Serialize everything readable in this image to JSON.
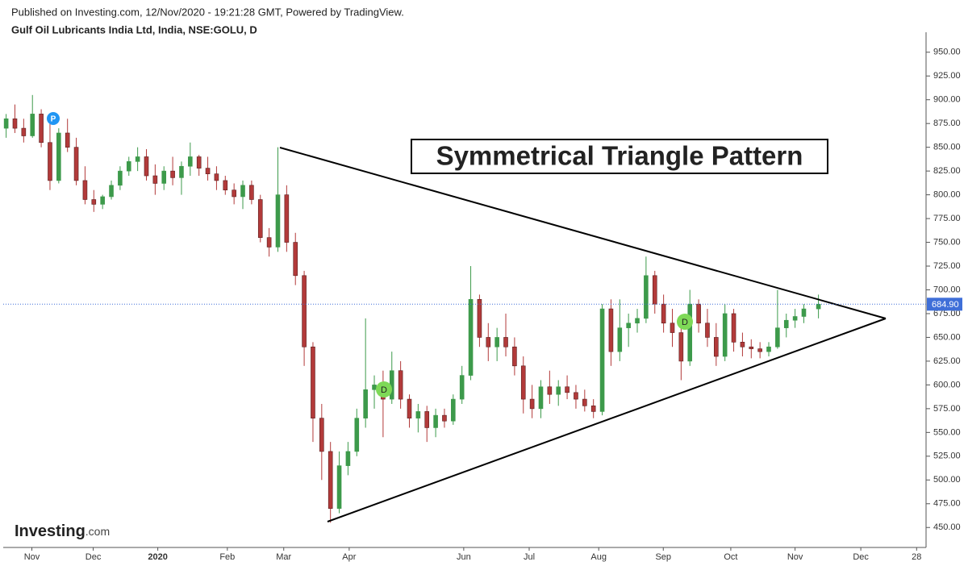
{
  "header": {
    "published": "Published on Investing.com, 12/Nov/2020 - 19:21:28 GMT, Powered by TradingView.",
    "symbol": "Gulf Oil Lubricants India Ltd, India, NSE:GOLU, D"
  },
  "chart_data": {
    "type": "candlestick",
    "annotation": "Symmetrical Triangle Pattern",
    "markers": [
      "P",
      "D",
      "D"
    ],
    "logo": {
      "brand": "Investing",
      "suffix": ".com"
    },
    "up_color": "#3d9a4b",
    "down_color": "#b23a3a",
    "last_price": {
      "value": 684.9,
      "label": "684.90"
    },
    "xlim": [
      -1,
      314
    ],
    "ylim": [
      429,
      971
    ],
    "xticks": [
      {
        "value": 8.8,
        "label": "Nov"
      },
      {
        "value": 29.8,
        "label": "Dec"
      },
      {
        "value": 51.9,
        "label": "2020"
      },
      {
        "value": 75.7,
        "label": "Feb"
      },
      {
        "value": 95,
        "label": "Mar"
      },
      {
        "value": 117.4,
        "label": "Apr"
      },
      {
        "value": 156.6,
        "label": "Jun"
      },
      {
        "value": 179,
        "label": "Jul"
      },
      {
        "value": 202.8,
        "label": "Aug"
      },
      {
        "value": 224.9,
        "label": "Sep"
      },
      {
        "value": 248,
        "label": "Oct"
      },
      {
        "value": 270,
        "label": "Nov"
      },
      {
        "value": 292.5,
        "label": "Dec"
      },
      {
        "value": 311.6,
        "label": "28"
      }
    ],
    "yticks": [
      {
        "value": 450,
        "label": "450.00"
      },
      {
        "value": 475,
        "label": "475.00"
      },
      {
        "value": 500,
        "label": "500.00"
      },
      {
        "value": 525,
        "label": "525.00"
      },
      {
        "value": 550,
        "label": "550.00"
      },
      {
        "value": 575,
        "label": "575.00"
      },
      {
        "value": 600,
        "label": "600.00"
      },
      {
        "value": 625,
        "label": "625.00"
      },
      {
        "value": 650,
        "label": "650.00"
      },
      {
        "value": 675,
        "label": "675.00"
      },
      {
        "value": 700,
        "label": "700.00"
      },
      {
        "value": 725,
        "label": "725.00"
      },
      {
        "value": 750,
        "label": "750.00"
      },
      {
        "value": 775,
        "label": "775.00"
      },
      {
        "value": 800,
        "label": "800.00"
      },
      {
        "value": 825,
        "label": "825.00"
      },
      {
        "value": 850,
        "label": "850.00"
      },
      {
        "value": 875,
        "label": "875.00"
      },
      {
        "value": 900,
        "label": "900.00"
      },
      {
        "value": 925,
        "label": "925.00"
      },
      {
        "value": 950,
        "label": "950.00"
      }
    ],
    "x": [
      0,
      3,
      6,
      9,
      12,
      15,
      18,
      21,
      24,
      27,
      30,
      33,
      36,
      39,
      42,
      45,
      48,
      51,
      54,
      57,
      60,
      63,
      66,
      69,
      72,
      75,
      78,
      81,
      84,
      87,
      90,
      93,
      96,
      99,
      102,
      105,
      108,
      111,
      114,
      117,
      120,
      123,
      126,
      129,
      132,
      135,
      138,
      141,
      144,
      147,
      150,
      153,
      156,
      159,
      162,
      165,
      168,
      171,
      174,
      177,
      180,
      183,
      186,
      189,
      192,
      195,
      198,
      201,
      204,
      207,
      210,
      213,
      216,
      219,
      222,
      225,
      228,
      231,
      234,
      237,
      240,
      243,
      246,
      249,
      252,
      255,
      258,
      261,
      264,
      267,
      270,
      273,
      278
    ],
    "ohlc": [
      [
        870,
        885,
        860,
        880
      ],
      [
        880,
        895,
        865,
        870
      ],
      [
        870,
        880,
        855,
        862
      ],
      [
        862,
        905,
        860,
        885
      ],
      [
        885,
        890,
        850,
        855
      ],
      [
        855,
        875,
        805,
        815
      ],
      [
        815,
        870,
        812,
        865
      ],
      [
        865,
        880,
        845,
        850
      ],
      [
        850,
        860,
        810,
        815
      ],
      [
        815,
        830,
        790,
        795
      ],
      [
        795,
        805,
        782,
        790
      ],
      [
        790,
        800,
        785,
        798
      ],
      [
        798,
        815,
        795,
        810
      ],
      [
        810,
        830,
        805,
        825
      ],
      [
        825,
        840,
        820,
        835
      ],
      [
        835,
        850,
        825,
        840
      ],
      [
        840,
        848,
        815,
        820
      ],
      [
        820,
        832,
        800,
        812
      ],
      [
        812,
        830,
        805,
        825
      ],
      [
        825,
        840,
        810,
        818
      ],
      [
        818,
        835,
        800,
        830
      ],
      [
        830,
        855,
        820,
        840
      ],
      [
        840,
        842,
        820,
        828
      ],
      [
        828,
        840,
        815,
        822
      ],
      [
        822,
        830,
        805,
        815
      ],
      [
        815,
        820,
        800,
        805
      ],
      [
        805,
        812,
        790,
        798
      ],
      [
        798,
        815,
        785,
        810
      ],
      [
        810,
        815,
        790,
        795
      ],
      [
        795,
        800,
        750,
        755
      ],
      [
        755,
        765,
        735,
        745
      ],
      [
        745,
        850,
        740,
        800
      ],
      [
        800,
        810,
        740,
        750
      ],
      [
        750,
        760,
        705,
        715
      ],
      [
        715,
        720,
        620,
        640
      ],
      [
        640,
        645,
        540,
        565
      ],
      [
        565,
        580,
        500,
        530
      ],
      [
        530,
        540,
        455,
        470
      ],
      [
        470,
        530,
        465,
        515
      ],
      [
        515,
        540,
        505,
        530
      ],
      [
        530,
        575,
        525,
        565
      ],
      [
        565,
        670,
        555,
        595
      ],
      [
        595,
        610,
        575,
        600
      ],
      [
        600,
        615,
        545,
        585
      ],
      [
        585,
        635,
        580,
        615
      ],
      [
        615,
        625,
        575,
        585
      ],
      [
        585,
        590,
        555,
        565
      ],
      [
        565,
        580,
        550,
        572
      ],
      [
        572,
        578,
        540,
        555
      ],
      [
        555,
        575,
        545,
        568
      ],
      [
        568,
        575,
        555,
        562
      ],
      [
        562,
        590,
        558,
        585
      ],
      [
        585,
        620,
        580,
        610
      ],
      [
        610,
        725,
        605,
        690
      ],
      [
        690,
        695,
        640,
        650
      ],
      [
        650,
        665,
        625,
        640
      ],
      [
        640,
        660,
        625,
        650
      ],
      [
        650,
        675,
        630,
        640
      ],
      [
        640,
        650,
        610,
        620
      ],
      [
        620,
        630,
        570,
        585
      ],
      [
        585,
        600,
        565,
        575
      ],
      [
        575,
        605,
        565,
        598
      ],
      [
        598,
        615,
        580,
        590
      ],
      [
        590,
        605,
        578,
        598
      ],
      [
        598,
        610,
        585,
        592
      ],
      [
        592,
        600,
        575,
        585
      ],
      [
        585,
        595,
        572,
        578
      ],
      [
        578,
        585,
        565,
        572
      ],
      [
        572,
        685,
        568,
        680
      ],
      [
        680,
        690,
        620,
        635
      ],
      [
        635,
        690,
        625,
        660
      ],
      [
        660,
        675,
        640,
        665
      ],
      [
        665,
        680,
        655,
        670
      ],
      [
        670,
        735,
        665,
        715
      ],
      [
        715,
        720,
        675,
        685
      ],
      [
        685,
        695,
        655,
        665
      ],
      [
        665,
        680,
        640,
        655
      ],
      [
        655,
        665,
        605,
        625
      ],
      [
        625,
        700,
        620,
        685
      ],
      [
        685,
        690,
        655,
        665
      ],
      [
        665,
        680,
        640,
        650
      ],
      [
        650,
        665,
        620,
        630
      ],
      [
        630,
        685,
        625,
        675
      ],
      [
        675,
        680,
        635,
        645
      ],
      [
        645,
        655,
        630,
        640
      ],
      [
        640,
        648,
        628,
        638
      ],
      [
        638,
        645,
        628,
        635
      ],
      [
        635,
        645,
        630,
        640
      ],
      [
        640,
        700,
        638,
        660
      ],
      [
        660,
        675,
        650,
        668
      ],
      [
        668,
        680,
        660,
        672
      ],
      [
        672,
        685,
        665,
        680
      ],
      [
        680,
        695,
        670,
        684.9
      ]
    ]
  }
}
